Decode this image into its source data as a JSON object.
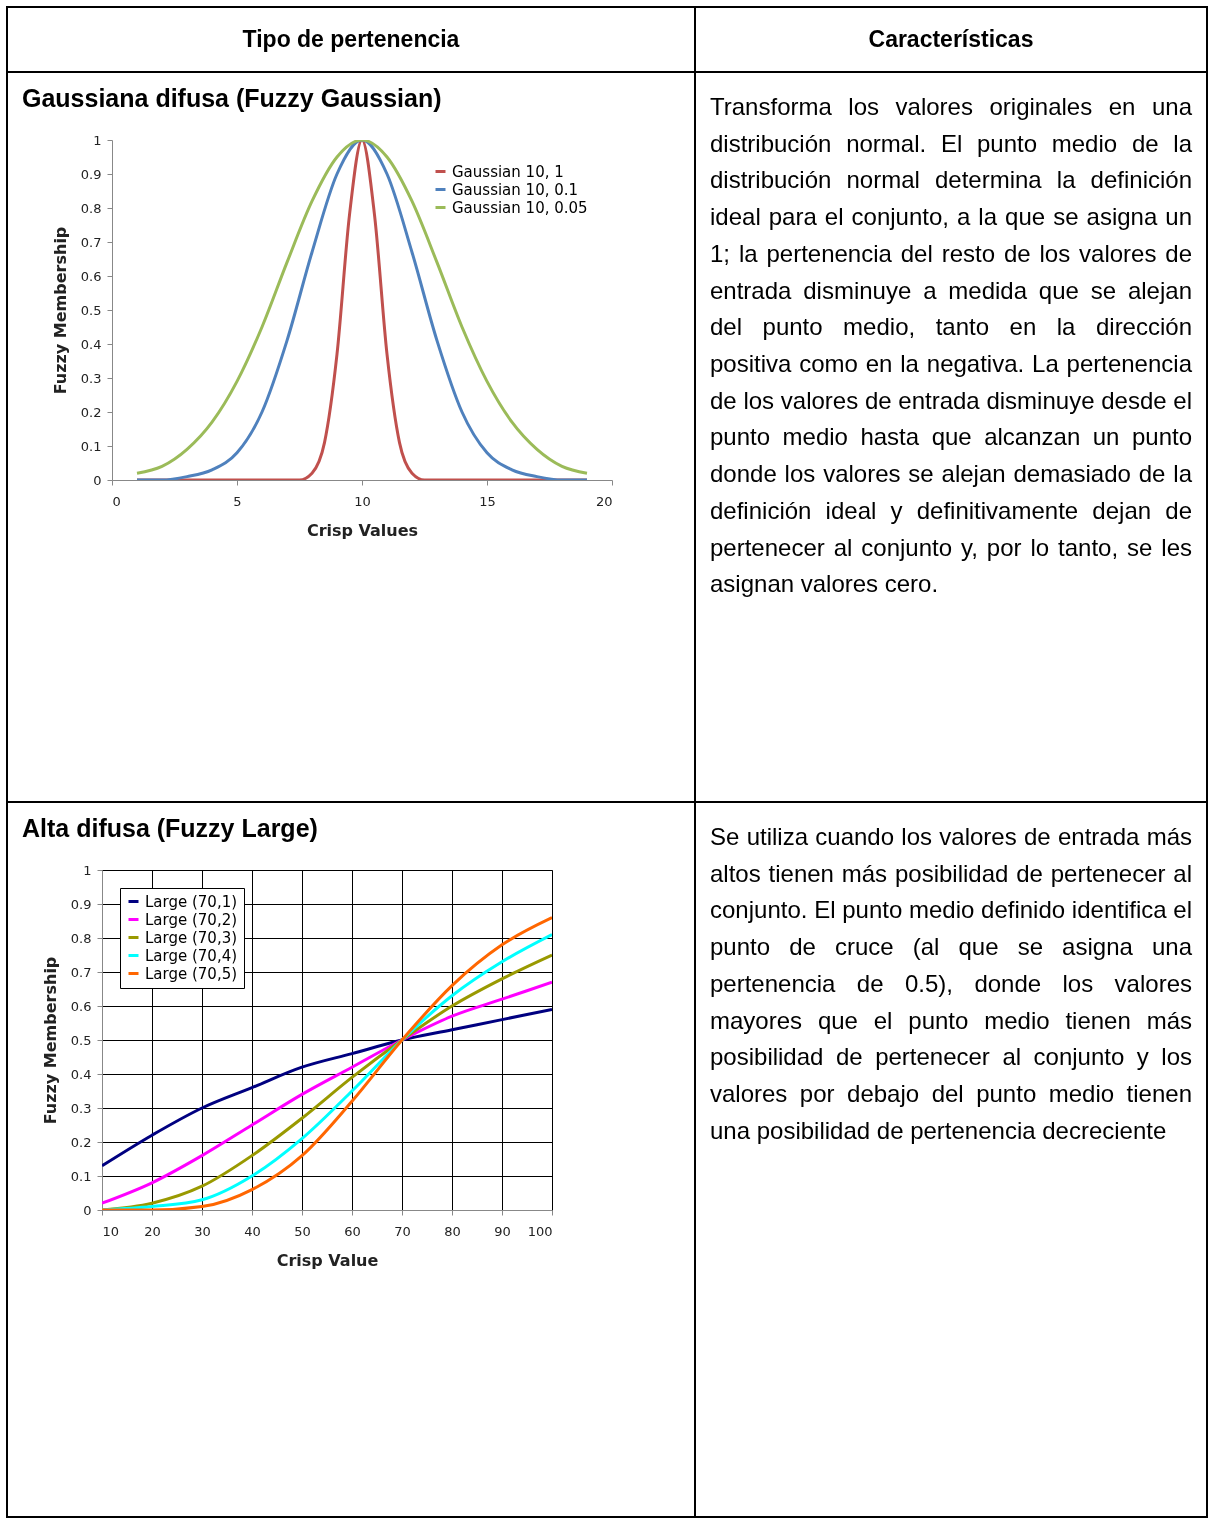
{
  "chart_data": [
    {
      "type": "other",
      "title": "Tipo de pertenencia"
    },
    {
      "type": "other",
      "title": "Características"
    },
    {
      "type": "line",
      "title": "Gaussiana difusa (Fuzzy Gaussian)",
      "xlabel": "Crisp Values",
      "ylabel": "Fuzzy Membership",
      "xlim": [
        0,
        20
      ],
      "xticks": [
        0,
        5,
        10,
        15,
        20
      ],
      "ylim": [
        0,
        1
      ],
      "yticks": [
        0,
        0.1,
        0.2,
        0.3,
        0.4,
        0.5,
        0.6,
        0.7,
        0.8,
        0.9,
        1
      ],
      "legend": "top right",
      "series": [
        {
          "name": "Gaussian 10, 1",
          "color": "#c0504d",
          "x": [
            1,
            2,
            3,
            4,
            5,
            6,
            7,
            7.5,
            8,
            8.5,
            9,
            9.5,
            10,
            10.5,
            11,
            11.5,
            12,
            12.5,
            13,
            14,
            15,
            16,
            17,
            18,
            19
          ],
          "values": [
            0,
            0,
            0,
            0,
            0,
            0,
            0,
            0,
            0.02,
            0.11,
            0.37,
            0.78,
            1,
            0.78,
            0.37,
            0.11,
            0.02,
            0,
            0,
            0,
            0,
            0,
            0,
            0,
            0
          ]
        },
        {
          "name": "Gaussian 10, 0.1",
          "color": "#4f81bd",
          "x": [
            1,
            2,
            3,
            4,
            5,
            6,
            7,
            8,
            9,
            10,
            11,
            12,
            13,
            14,
            15,
            16,
            17,
            18,
            19
          ],
          "values": [
            0,
            0,
            0.01,
            0.03,
            0.08,
            0.2,
            0.41,
            0.67,
            0.9,
            1,
            0.9,
            0.67,
            0.41,
            0.2,
            0.08,
            0.03,
            0.01,
            0,
            0
          ]
        },
        {
          "name": "Gaussian 10, 0.05",
          "color": "#9bbb59",
          "x": [
            1,
            2,
            3,
            4,
            5,
            6,
            7,
            8,
            9,
            10,
            11,
            12,
            13,
            14,
            15,
            16,
            17,
            18,
            19
          ],
          "values": [
            0.02,
            0.04,
            0.09,
            0.17,
            0.29,
            0.45,
            0.64,
            0.82,
            0.95,
            1,
            0.95,
            0.82,
            0.64,
            0.45,
            0.29,
            0.17,
            0.09,
            0.04,
            0.02
          ]
        }
      ]
    },
    {
      "type": "other",
      "annotations": [
        "Transforma los valores originales en una distribución normal. El punto medio de la distribución normal determina la definición ideal para el conjunto, a la que se asigna un 1; la pertenencia del resto de los valores de entrada disminuye a medida que se alejan del punto medio, tanto en la dirección positiva como en la negativa. La pertenencia de los valores de entrada disminuye desde el punto medio hasta que alcanzan un punto donde los valores se alejan demasiado de la definición ideal y definitivamente dejan de pertenecer al conjunto y, por lo tanto, se les asignan valores cero."
      ]
    },
    {
      "type": "line",
      "title": "Alta difusa (Fuzzy Large)",
      "xlabel": "Crisp Value",
      "ylabel": "Fuzzy Membership",
      "xlim": [
        10,
        100
      ],
      "xticks": [
        10,
        20,
        30,
        40,
        50,
        60,
        70,
        80,
        90,
        100
      ],
      "ylim": [
        0,
        1
      ],
      "yticks": [
        0,
        0.1,
        0.2,
        0.3,
        0.4,
        0.5,
        0.6,
        0.7,
        0.8,
        0.9,
        1
      ],
      "grid": true,
      "legend": "top left",
      "x": [
        10,
        20,
        30,
        40,
        50,
        60,
        70,
        80,
        90,
        100
      ],
      "series": [
        {
          "name": "Large (70,1)",
          "color": "#000080",
          "values": [
            0.13,
            0.22,
            0.3,
            0.36,
            0.42,
            0.46,
            0.5,
            0.53,
            0.56,
            0.59
          ]
        },
        {
          "name": "Large (70,2)",
          "color": "#ff00ff",
          "values": [
            0.02,
            0.08,
            0.16,
            0.25,
            0.34,
            0.42,
            0.5,
            0.57,
            0.62,
            0.67
          ]
        },
        {
          "name": "Large (70,3)",
          "color": "#999900",
          "values": [
            0,
            0.02,
            0.07,
            0.16,
            0.27,
            0.39,
            0.5,
            0.6,
            0.68,
            0.75
          ]
        },
        {
          "name": "Large (70,4)",
          "color": "#00ffff",
          "values": [
            0,
            0.01,
            0.03,
            0.1,
            0.21,
            0.35,
            0.5,
            0.63,
            0.73,
            0.81
          ]
        },
        {
          "name": "Large (70,5)",
          "color": "#ff6600",
          "values": [
            0,
            0,
            0.01,
            0.06,
            0.16,
            0.32,
            0.5,
            0.66,
            0.78,
            0.86
          ]
        }
      ]
    },
    {
      "type": "other",
      "annotations": [
        "Se utiliza cuando los valores de entrada más altos tienen más posibilidad de pertenecer al conjunto. El punto medio definido identifica el punto de cruce (al que se asigna una pertenencia de 0.5), donde los valores mayores que el punto medio tienen más posibilidad de pertenecer al conjunto y los valores por debajo del punto medio tienen una posibilidad de pertenencia decreciente"
      ]
    }
  ]
}
